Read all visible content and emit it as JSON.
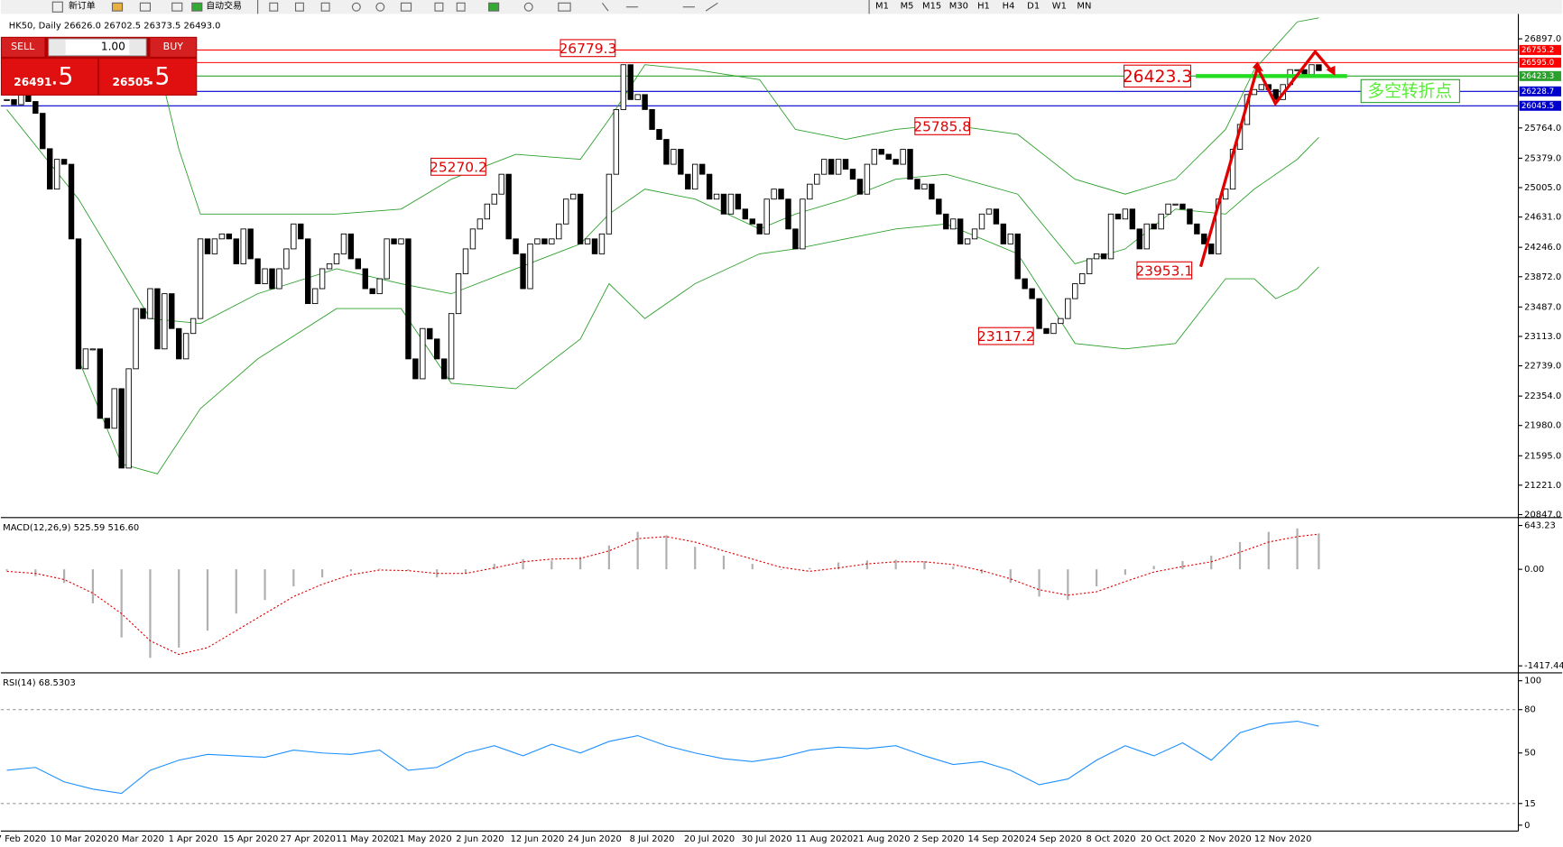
{
  "toolbar": {
    "buttons": [
      "新订单",
      "自动交易"
    ],
    "timeframes": [
      "M1",
      "M5",
      "M15",
      "M30",
      "H1",
      "H4",
      "D1",
      "W1",
      "MN"
    ]
  },
  "trade_panel": {
    "sell": "SELL",
    "buy": "BUY",
    "lot": "1.00",
    "bid": {
      "main": "26491",
      "big": ".5"
    },
    "ask": {
      "main": "26505",
      "big": ".5"
    }
  },
  "chart_data": [
    {
      "type": "candlestick",
      "title": "HK50, Daily 26626.0 26702.5 26373.5 26493.0",
      "categories": [
        null,
        null,
        "7 Feb 2020",
        null,
        null,
        null,
        null,
        null,
        null,
        null,
        "10 Mar 2020",
        null,
        null,
        null,
        null,
        null,
        null,
        null,
        "20 Mar 2020",
        null,
        null,
        null,
        null,
        null,
        null,
        null,
        "1 Apr 2020",
        null,
        null,
        null,
        null,
        null,
        null,
        null,
        "15 Apr 2020",
        null,
        null,
        null,
        null,
        null,
        null,
        null,
        "27 Apr 2020",
        null,
        null,
        null,
        null,
        null,
        null,
        null,
        "11 May 2020",
        null,
        null,
        null,
        null,
        null,
        null,
        null,
        "21 May 2020",
        null,
        null,
        null,
        null,
        null,
        null,
        null,
        "2 Jun 2020",
        null,
        null,
        null,
        null,
        null,
        null,
        null,
        "12 Jun 2020",
        null,
        null,
        null,
        null,
        null,
        null,
        null,
        "24 Jun 2020",
        null,
        null,
        null,
        null,
        null,
        null,
        null,
        "8 Jul 2020",
        null,
        null,
        null,
        null,
        null,
        null,
        null,
        "20 Jul 2020",
        null,
        null,
        null,
        null,
        null,
        null,
        null,
        "30 Jul 2020",
        null,
        null,
        null,
        null,
        null,
        null,
        null,
        "11 Aug 2020",
        null,
        null,
        null,
        null,
        null,
        null,
        null,
        "21 Aug 2020",
        null,
        null,
        null,
        null,
        null,
        null,
        null,
        "2 Sep 2020",
        null,
        null,
        null,
        null,
        null,
        null,
        null,
        "14 Sep 2020",
        null,
        null,
        null,
        null,
        null,
        null,
        null,
        "24 Sep 2020",
        null,
        null,
        null,
        null,
        null,
        null,
        null,
        "8 Oct 2020",
        null,
        null,
        null,
        null,
        null,
        null,
        null,
        "20 Oct 2020",
        null,
        null,
        null,
        null,
        null,
        null,
        null,
        "2 Nov 2020",
        null,
        null,
        null,
        null,
        null,
        null,
        null,
        "12 Nov 2020",
        null,
        null,
        null,
        null,
        null
      ],
      "close": [
        26125,
        26060,
        26180,
        26100,
        25950,
        25500,
        24986,
        25365,
        25302,
        24353,
        22701,
        22954,
        22954,
        22071,
        21945,
        22448,
        21439,
        22701,
        23467,
        23340,
        23720,
        22954,
        23656,
        23213,
        22827,
        23150,
        23340,
        24353,
        24163,
        24353,
        24416,
        24353,
        24036,
        24479,
        24100,
        23783,
        23973,
        23720,
        23973,
        24226,
        24543,
        24353,
        23530,
        23720,
        23973,
        24036,
        24163,
        24416,
        24100,
        23973,
        23720,
        23656,
        23846,
        24353,
        24289,
        24353,
        22827,
        22574,
        23213,
        23080,
        22827,
        22574,
        23403,
        23910,
        24226,
        24479,
        24606,
        24796,
        24922,
        25175,
        24353,
        24163,
        23720,
        24289,
        24353,
        24289,
        24353,
        24543,
        24859,
        24922,
        24289,
        24353,
        24163,
        24416,
        25175,
        25998,
        26568,
        26125,
        26188,
        25998,
        25745,
        25618,
        25302,
        25492,
        25175,
        24986,
        25302,
        25175,
        24859,
        24922,
        24669,
        24922,
        24732,
        24606,
        24543,
        24416,
        24859,
        24986,
        24859,
        24479,
        24226,
        24859,
        25049,
        25175,
        25365,
        25175,
        25365,
        25239,
        25112,
        24922,
        25302,
        25492,
        25429,
        25365,
        25302,
        25492,
        25112,
        24986,
        25049,
        24859,
        24669,
        24479,
        24606,
        24289,
        24353,
        24479,
        24669,
        24732,
        24543,
        24289,
        24416,
        23846,
        23720,
        23593,
        23213,
        23150,
        23277,
        23340,
        23593,
        23783,
        23910,
        24100,
        24163,
        24100,
        24669,
        24606,
        24732,
        24479,
        24226,
        24543,
        24479,
        24669,
        24796,
        24796,
        24732,
        24543,
        24416,
        24289,
        24163,
        24859,
        24986,
        25492,
        25808,
        26188,
        26252,
        26315,
        26252,
        26125,
        26315,
        26505,
        26505,
        26442,
        26568,
        26493
      ],
      "up_color": "#ffffff",
      "down_color": "#000000",
      "bands": {
        "color": "#2ca02c",
        "upper": {
          "x": [
            21,
            24,
            27,
            35,
            46,
            55,
            62,
            71,
            80,
            84,
            89,
            96,
            105,
            110,
            117,
            124,
            131,
            141,
            149,
            156,
            163,
            170,
            174,
            180,
            183
          ],
          "values": [
            26631,
            25492,
            24669,
            24669,
            24669,
            24732,
            25112,
            25429,
            25365,
            25872,
            26568,
            26505,
            26378,
            25745,
            25618,
            25745,
            25808,
            25682,
            25112,
            24922,
            25112,
            25745,
            26505,
            27113,
            27163
          ]
        },
        "middle": {
          "x": [
            0,
            10,
            20,
            27,
            35,
            46,
            55,
            62,
            71,
            80,
            84,
            89,
            96,
            105,
            110,
            117,
            124,
            131,
            141,
            149,
            156,
            163,
            170,
            174,
            180,
            183
          ],
          "values": [
            25998,
            24859,
            23340,
            23277,
            23656,
            23973,
            23783,
            23656,
            23973,
            24289,
            24669,
            24986,
            24859,
            24479,
            24669,
            24859,
            25112,
            25175,
            24922,
            24036,
            24226,
            24732,
            24669,
            24986,
            25365,
            25644
          ]
        },
        "lower": {
          "x": [
            10,
            16,
            21,
            27,
            35,
            46,
            55,
            62,
            71,
            80,
            84,
            89,
            96,
            105,
            110,
            117,
            124,
            131,
            141,
            149,
            156,
            163,
            170,
            174,
            177,
            180,
            183
          ],
          "values": [
            22821,
            21492,
            21365,
            22194,
            22827,
            23467,
            23467,
            22517,
            22448,
            23080,
            23783,
            23340,
            23783,
            24163,
            24226,
            24353,
            24479,
            24543,
            24163,
            23023,
            22954,
            23023,
            23846,
            23846,
            23593,
            23720,
            23998
          ]
        }
      },
      "ylim": [
        20822,
        27163
      ],
      "yticks": [
        {
          "value": 26897,
          "label": "26897.0"
        },
        {
          "value": 25764,
          "label": "25764.0"
        },
        {
          "value": 25379,
          "label": "25379.0"
        },
        {
          "value": 25005,
          "label": "25005.0"
        },
        {
          "value": 24631,
          "label": "24631.0"
        },
        {
          "value": 24246,
          "label": "24246.0"
        },
        {
          "value": 23872,
          "label": "23872.0"
        },
        {
          "value": 23487,
          "label": "23487.0"
        },
        {
          "value": 23113,
          "label": "23113.0"
        },
        {
          "value": 22739,
          "label": "22739.0"
        },
        {
          "value": 22354,
          "label": "22354.0"
        },
        {
          "value": 21980,
          "label": "21980.0"
        },
        {
          "value": 21595,
          "label": "21595.0"
        },
        {
          "value": 21221,
          "label": "21221.0"
        },
        {
          "value": 20847,
          "label": "20847.0"
        }
      ],
      "levels": [
        {
          "value": 26755.2,
          "color": "#ff0000"
        },
        {
          "value": 26595,
          "label": "26595.0",
          "color": "#ff0000"
        },
        {
          "value": 26423.3,
          "color": "#2ca02c"
        },
        {
          "value": 26228.7,
          "color": "#0000cc"
        },
        {
          "value": 26045.5,
          "color": "#0000cc"
        }
      ],
      "annotations": [
        26779.3,
        25270.2,
        25785.8,
        23117.2,
        23953.1,
        26423.3
      ],
      "pivot_label": "多空转折点"
    },
    {
      "type": "macd",
      "title": "MACD(12,26,9) 525.59 516.60",
      "x": [
        0,
        4,
        8,
        12,
        16,
        20,
        24,
        28,
        32,
        36,
        40,
        44,
        48,
        52,
        56,
        60,
        64,
        68,
        72,
        76,
        80,
        84,
        88,
        92,
        96,
        100,
        104,
        108,
        112,
        116,
        120,
        124,
        128,
        132,
        136,
        140,
        144,
        148,
        152,
        156,
        160,
        164,
        168,
        172,
        176,
        180,
        183
      ],
      "histogram": {
        "color": "#b0b0b0",
        "values": [
          -20,
          -100,
          -200,
          -500,
          -1000,
          -1300,
          -1150,
          -900,
          -650,
          -450,
          -250,
          -120,
          -30,
          10,
          -20,
          -120,
          -60,
          80,
          150,
          130,
          180,
          350,
          550,
          500,
          330,
          200,
          80,
          -10,
          20,
          100,
          130,
          140,
          120,
          40,
          -60,
          -200,
          -400,
          -450,
          -250,
          -80,
          50,
          120,
          200,
          400,
          550,
          600,
          525.59
        ]
      },
      "signal": {
        "color": "#e00000",
        "values": [
          -30,
          -60,
          -150,
          -350,
          -650,
          -1050,
          -1250,
          -1150,
          -900,
          -650,
          -400,
          -220,
          -80,
          -10,
          -20,
          -60,
          -60,
          20,
          110,
          150,
          160,
          270,
          450,
          480,
          400,
          270,
          150,
          30,
          -30,
          20,
          80,
          110,
          110,
          70,
          -20,
          -140,
          -300,
          -380,
          -330,
          -180,
          -40,
          40,
          110,
          250,
          400,
          480,
          516.6
        ]
      },
      "ylim": [
        -1505,
        745
      ],
      "yticks": [
        643.23,
        {
          "value": 0,
          "label": "0.00"
        },
        -1417.44
      ]
    },
    {
      "type": "line",
      "title": "RSI(14) 68.5303",
      "x": [
        0,
        4,
        8,
        12,
        16,
        20,
        24,
        28,
        32,
        36,
        40,
        44,
        48,
        52,
        56,
        60,
        64,
        68,
        72,
        76,
        80,
        84,
        88,
        92,
        96,
        100,
        104,
        108,
        112,
        116,
        120,
        124,
        128,
        132,
        136,
        140,
        144,
        148,
        152,
        156,
        160,
        164,
        168,
        172,
        176,
        180,
        183
      ],
      "values": [
        38,
        40,
        30,
        25,
        22,
        38,
        45,
        49,
        48,
        47,
        52,
        50,
        49,
        52,
        38,
        40,
        50,
        55,
        48,
        56,
        50,
        58,
        62,
        55,
        50,
        46,
        44,
        47,
        52,
        54,
        53,
        55,
        48,
        42,
        44,
        38,
        28,
        32,
        45,
        55,
        48,
        57,
        45,
        64,
        70,
        72,
        68.5303
      ],
      "color": "#1e90ff",
      "ylim": [
        -3.4,
        104.8
      ],
      "yticks": [
        100,
        80,
        50,
        15,
        0
      ],
      "dashed_levels": [
        80,
        15
      ]
    }
  ]
}
